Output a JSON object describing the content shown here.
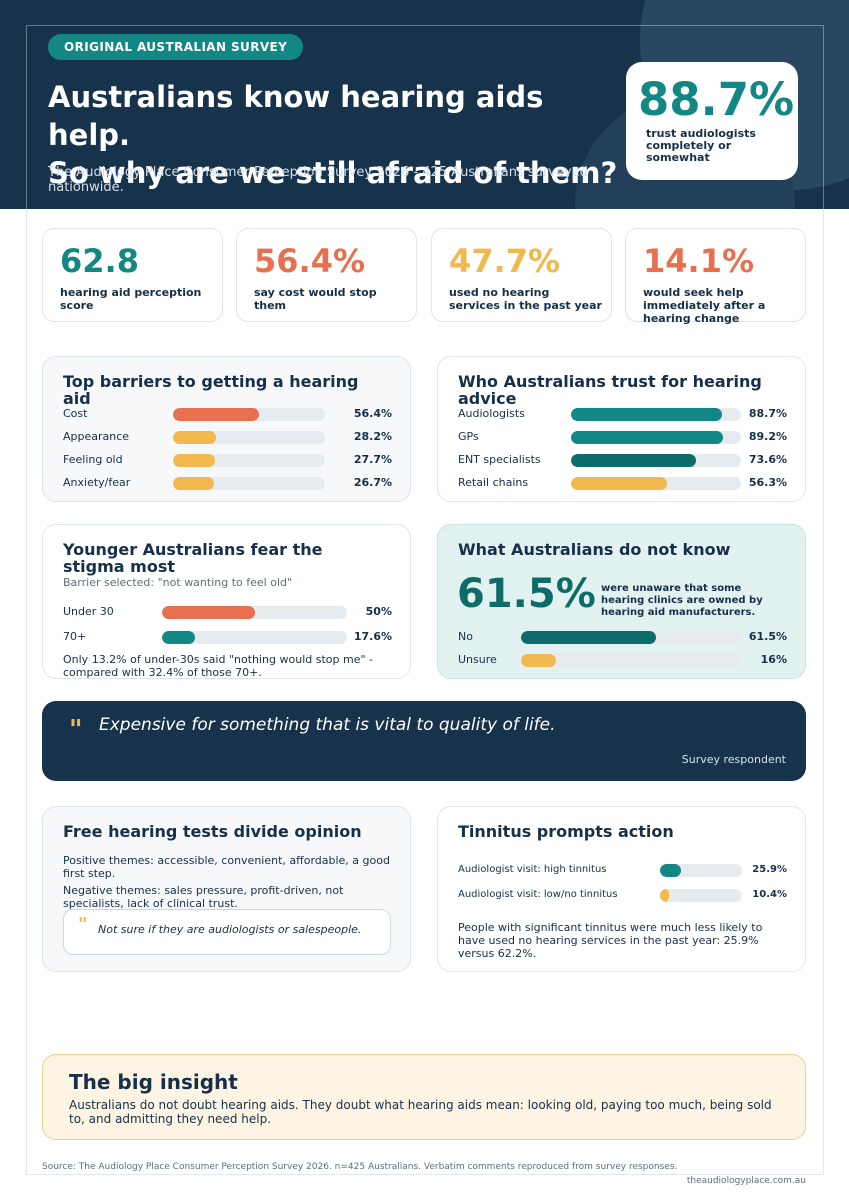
{
  "header": {
    "badge": "ORIGINAL AUSTRALIAN SURVEY",
    "title_line1": "Australians know hearing aids help.",
    "title_line2": "So why are we still afraid of them?",
    "subtitle": "The Audiology Place Consumer Perception Survey 2026 - 425 Australians surveyed nationwide.",
    "hero_stat": {
      "value": "88.7%",
      "label": "trust audiologists completely or somewhat"
    }
  },
  "kpis": [
    {
      "value": "62.8",
      "label": "hearing aid perception score",
      "color": "#138784"
    },
    {
      "value": "56.4%",
      "label": "say cost would stop them",
      "color": "#e6704f"
    },
    {
      "value": "47.7%",
      "label": "used no hearing services in the past year",
      "color": "#f1b84d"
    },
    {
      "value": "14.1%",
      "label": "would seek help immediately after a hearing change",
      "color": "#e6704f"
    }
  ],
  "barriers": {
    "title": "Top barriers to getting a hearing aid",
    "rows": [
      {
        "label": "Cost",
        "value": 56.4,
        "display": "56.4%",
        "color": "#e6704f"
      },
      {
        "label": "Appearance",
        "value": 28.2,
        "display": "28.2%",
        "color": "#f1b84d"
      },
      {
        "label": "Feeling old",
        "value": 27.7,
        "display": "27.7%",
        "color": "#f1b84d"
      },
      {
        "label": "Anxiety/fear",
        "value": 26.7,
        "display": "26.7%",
        "color": "#f1b84d"
      }
    ]
  },
  "trust": {
    "title": "Who Australians trust for hearing advice",
    "rows": [
      {
        "label": "Audiologists",
        "value": 88.7,
        "display": "88.7%",
        "color": "#138784"
      },
      {
        "label": "GPs",
        "value": 89.2,
        "display": "89.2%",
        "color": "#138784"
      },
      {
        "label": "ENT specialists",
        "value": 73.6,
        "display": "73.6%",
        "color": "#0d6b69"
      },
      {
        "label": "Retail chains",
        "value": 56.3,
        "display": "56.3%",
        "color": "#f1b84d"
      }
    ]
  },
  "stigma": {
    "title": "Younger Australians fear the stigma most",
    "subtitle": "Barrier selected: \"not wanting to feel old\"",
    "rows": [
      {
        "label": "Under 30",
        "value": 50,
        "display": "50%",
        "color": "#e6704f"
      },
      {
        "label": "70+",
        "value": 17.6,
        "display": "17.6%",
        "color": "#138784"
      }
    ],
    "note": "Only 13.2% of under-30s said \"nothing would stop me\" - compared with 32.4% of those 70+."
  },
  "unknown": {
    "title": "What Australians do not know",
    "big_value": "61.5%",
    "big_label": "were unaware that some hearing clinics are owned by hearing aid manufacturers.",
    "rows": [
      {
        "label": "No",
        "value": 61.5,
        "display": "61.5%",
        "color": "#0d6b69"
      },
      {
        "label": "Unsure",
        "value": 16,
        "display": "16%",
        "color": "#f1b84d"
      }
    ]
  },
  "quote": {
    "mark": "\"",
    "text": "Expensive for something that is vital to quality of life.",
    "attribution": "Survey respondent"
  },
  "free_tests": {
    "title": "Free hearing tests divide opinion",
    "positive": "Positive themes: accessible, convenient, affordable, a good first step.",
    "negative": "Negative themes: sales pressure, profit-driven, not specialists, lack of clinical trust.",
    "quote_mark": "\"",
    "quote": "Not sure if they are audiologists or salespeople."
  },
  "tinnitus": {
    "title": "Tinnitus prompts action",
    "rows": [
      {
        "label": "Audiologist visit: high tinnitus",
        "value": 25.9,
        "display": "25.9%",
        "color": "#138784"
      },
      {
        "label": "Audiologist visit: low/no tinnitus",
        "value": 10.4,
        "display": "10.4%",
        "color": "#f1b84d"
      }
    ],
    "note": "People with significant tinnitus were much less likely to have used no hearing services in the past year: 25.9% versus 62.2%."
  },
  "insight": {
    "title": "The big insight",
    "body": "Australians do not doubt hearing aids. They doubt what hearing aids mean: looking old, paying too much, being sold to, and admitting they need help."
  },
  "footer": {
    "source": "Source: The Audiology Place Consumer Perception Survey 2026. n=425 Australians. Verbatim comments reproduced from survey responses.",
    "url": "theaudiologyplace.com.au"
  }
}
